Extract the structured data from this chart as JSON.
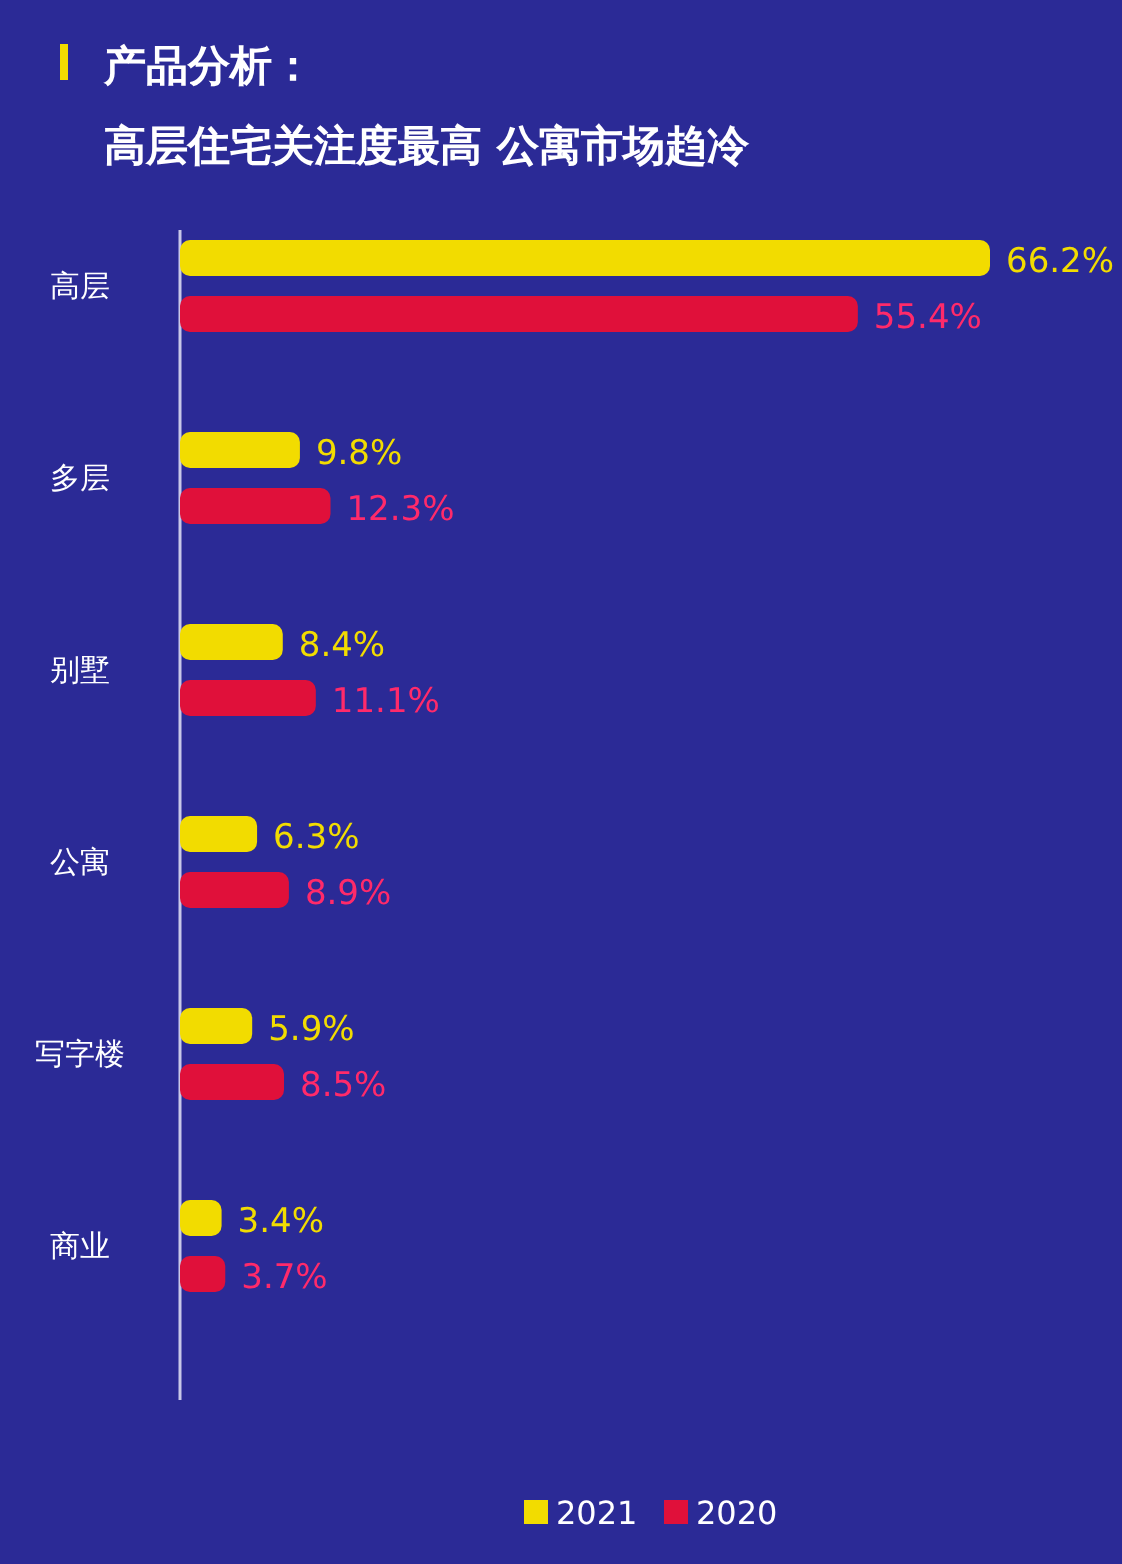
{
  "chart_data": {
    "type": "bar",
    "orientation": "horizontal",
    "title": "产品分析：",
    "subtitle": "高层住宅关注度最高  公寓市场趋冷",
    "categories": [
      "高层",
      "多层",
      "别墅",
      "公寓",
      "写字楼",
      "商业"
    ],
    "series": [
      {
        "name": "2021",
        "color": "#f2dc00",
        "values": [
          66.2,
          9.8,
          8.4,
          6.3,
          5.9,
          3.4
        ],
        "value_labels": [
          "66.2%",
          "9.8%",
          "8.4%",
          "6.3%",
          "5.9%",
          "3.4%"
        ]
      },
      {
        "name": "2020",
        "color": "#e0103a",
        "values": [
          55.4,
          12.3,
          11.1,
          8.9,
          8.5,
          3.7
        ],
        "value_labels": [
          "55.4%",
          "12.3%",
          "11.1%",
          "8.9%",
          "8.5%",
          "3.7%"
        ]
      }
    ],
    "legend": "bottom"
  }
}
